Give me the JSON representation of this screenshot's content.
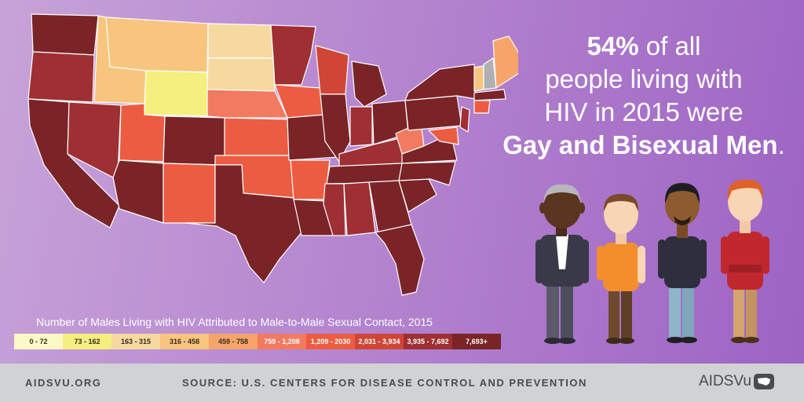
{
  "headline": {
    "percent": "54%",
    "line1_rest": " of all",
    "line2": "people living with",
    "line3": "HIV in 2015 were",
    "emphasis": "Gay and Bisexual Men",
    "period": "."
  },
  "legend": {
    "title": "Number of Males Living with HIV Attributed to Male-to-Male Sexual Contact, 2015",
    "bins": [
      {
        "label": "0 - 72",
        "color": "#fbf9c6",
        "text": "#3a2a20"
      },
      {
        "label": "73 - 162",
        "color": "#f4ef7e",
        "text": "#3a2a20"
      },
      {
        "label": "163 - 315",
        "color": "#f5d9a0",
        "text": "#3a2a20"
      },
      {
        "label": "316 - 458",
        "color": "#f8c57e",
        "text": "#3a2a20"
      },
      {
        "label": "459 - 758",
        "color": "#f6a46a",
        "text": "#3a2a20"
      },
      {
        "label": "759 - 1,208",
        "color": "#f27a60",
        "text": "#ffffff"
      },
      {
        "label": "1,209 - 2030",
        "color": "#ec5c41",
        "text": "#ffffff"
      },
      {
        "label": "2,031 - 3,934",
        "color": "#cf4637",
        "text": "#ffffff"
      },
      {
        "label": "3,935 - 7,692",
        "color": "#9e2f33",
        "text": "#ffffff"
      },
      {
        "label": "7,693+",
        "color": "#7a2428",
        "text": "#ffffff"
      }
    ]
  },
  "footer": {
    "site": "AIDSVU.ORG",
    "source": "SOURCE: U.S. CENTERS FOR DISEASE CONTROL AND PREVENTION",
    "logo": "AIDSVu"
  }
}
